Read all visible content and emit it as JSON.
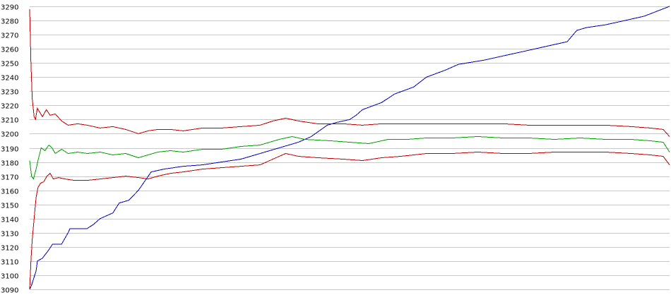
{
  "chart_data": {
    "type": "line",
    "title": "",
    "xlabel": "",
    "ylabel": "",
    "ylim": [
      3090,
      3290
    ],
    "xlim": [
      0,
      1
    ],
    "yticks": [
      "3090",
      "3100",
      "3110",
      "3120",
      "3130",
      "3140",
      "3150",
      "3160",
      "3170",
      "3180",
      "3190",
      "3200",
      "3210",
      "3220",
      "3230",
      "3240",
      "3250",
      "3260",
      "3270",
      "3280",
      "3290"
    ],
    "grid": true,
    "legend": "none",
    "colors": {
      "background": "#ffffff",
      "grid": "#c8c8c8",
      "axis_text": "#000000"
    },
    "series": [
      {
        "color": "#0000c0",
        "points": [
          [
            0,
            3090
          ],
          [
            0.003,
            3093
          ],
          [
            0.01,
            3103
          ],
          [
            0.012,
            3110
          ],
          [
            0.02,
            3112
          ],
          [
            0.03,
            3118
          ],
          [
            0.036,
            3122
          ],
          [
            0.05,
            3122
          ],
          [
            0.06,
            3130
          ],
          [
            0.063,
            3133
          ],
          [
            0.09,
            3133
          ],
          [
            0.1,
            3136
          ],
          [
            0.11,
            3140
          ],
          [
            0.13,
            3144
          ],
          [
            0.14,
            3151
          ],
          [
            0.155,
            3153
          ],
          [
            0.17,
            3160
          ],
          [
            0.19,
            3173
          ],
          [
            0.21,
            3175
          ],
          [
            0.24,
            3177
          ],
          [
            0.27,
            3178
          ],
          [
            0.3,
            3180
          ],
          [
            0.33,
            3182
          ],
          [
            0.36,
            3186
          ],
          [
            0.39,
            3190
          ],
          [
            0.42,
            3194
          ],
          [
            0.44,
            3198
          ],
          [
            0.465,
            3206
          ],
          [
            0.48,
            3208
          ],
          [
            0.5,
            3210
          ],
          [
            0.51,
            3213
          ],
          [
            0.52,
            3217
          ],
          [
            0.55,
            3222
          ],
          [
            0.57,
            3228
          ],
          [
            0.6,
            3233
          ],
          [
            0.62,
            3240
          ],
          [
            0.65,
            3245
          ],
          [
            0.67,
            3249
          ],
          [
            0.71,
            3252
          ],
          [
            0.74,
            3255
          ],
          [
            0.78,
            3259
          ],
          [
            0.81,
            3262
          ],
          [
            0.84,
            3265
          ],
          [
            0.855,
            3273
          ],
          [
            0.87,
            3275
          ],
          [
            0.9,
            3277
          ],
          [
            0.93,
            3280
          ],
          [
            0.96,
            3283
          ],
          [
            1,
            3290
          ]
        ]
      },
      {
        "color": "#00a000",
        "points": [
          [
            0,
            3181
          ],
          [
            0.003,
            3170
          ],
          [
            0.006,
            3168
          ],
          [
            0.01,
            3175
          ],
          [
            0.013,
            3181
          ],
          [
            0.018,
            3190
          ],
          [
            0.024,
            3188
          ],
          [
            0.03,
            3192
          ],
          [
            0.035,
            3190
          ],
          [
            0.04,
            3186
          ],
          [
            0.05,
            3189
          ],
          [
            0.06,
            3186
          ],
          [
            0.075,
            3187
          ],
          [
            0.09,
            3186
          ],
          [
            0.11,
            3187
          ],
          [
            0.13,
            3185
          ],
          [
            0.15,
            3186
          ],
          [
            0.17,
            3183
          ],
          [
            0.185,
            3185
          ],
          [
            0.2,
            3187
          ],
          [
            0.22,
            3188
          ],
          [
            0.24,
            3187
          ],
          [
            0.27,
            3189
          ],
          [
            0.3,
            3189
          ],
          [
            0.33,
            3191
          ],
          [
            0.36,
            3192
          ],
          [
            0.39,
            3196
          ],
          [
            0.41,
            3198
          ],
          [
            0.43,
            3196
          ],
          [
            0.47,
            3195
          ],
          [
            0.5,
            3194
          ],
          [
            0.53,
            3193
          ],
          [
            0.56,
            3196
          ],
          [
            0.59,
            3196
          ],
          [
            0.62,
            3197
          ],
          [
            0.66,
            3197
          ],
          [
            0.7,
            3198
          ],
          [
            0.74,
            3197
          ],
          [
            0.78,
            3197
          ],
          [
            0.82,
            3196
          ],
          [
            0.86,
            3197
          ],
          [
            0.9,
            3196
          ],
          [
            0.94,
            3196
          ],
          [
            0.97,
            3195
          ],
          [
            0.99,
            3194
          ],
          [
            1,
            3187
          ]
        ]
      },
      {
        "color": "#c00000",
        "points": [
          [
            0,
            3288
          ],
          [
            0.002,
            3250
          ],
          [
            0.004,
            3225
          ],
          [
            0.007,
            3212
          ],
          [
            0.009,
            3210
          ],
          [
            0.012,
            3218
          ],
          [
            0.016,
            3215
          ],
          [
            0.02,
            3212
          ],
          [
            0.026,
            3217
          ],
          [
            0.032,
            3213
          ],
          [
            0.04,
            3214
          ],
          [
            0.05,
            3209
          ],
          [
            0.06,
            3206
          ],
          [
            0.075,
            3207
          ],
          [
            0.09,
            3206
          ],
          [
            0.11,
            3204
          ],
          [
            0.13,
            3205
          ],
          [
            0.15,
            3203
          ],
          [
            0.17,
            3200
          ],
          [
            0.185,
            3202
          ],
          [
            0.2,
            3203
          ],
          [
            0.22,
            3203
          ],
          [
            0.24,
            3202
          ],
          [
            0.27,
            3204
          ],
          [
            0.3,
            3204
          ],
          [
            0.33,
            3205
          ],
          [
            0.36,
            3206
          ],
          [
            0.38,
            3209
          ],
          [
            0.4,
            3211
          ],
          [
            0.42,
            3209
          ],
          [
            0.45,
            3207
          ],
          [
            0.49,
            3207
          ],
          [
            0.52,
            3206
          ],
          [
            0.55,
            3207
          ],
          [
            0.58,
            3207
          ],
          [
            0.62,
            3207
          ],
          [
            0.66,
            3207
          ],
          [
            0.7,
            3207
          ],
          [
            0.74,
            3207
          ],
          [
            0.78,
            3206
          ],
          [
            0.82,
            3206
          ],
          [
            0.86,
            3206
          ],
          [
            0.9,
            3206
          ],
          [
            0.94,
            3205
          ],
          [
            0.97,
            3204
          ],
          [
            0.99,
            3203
          ],
          [
            1,
            3198
          ]
        ]
      },
      {
        "color": "#c00000",
        "points": [
          [
            0,
            3090
          ],
          [
            0.002,
            3110
          ],
          [
            0.004,
            3125
          ],
          [
            0.007,
            3140
          ],
          [
            0.01,
            3155
          ],
          [
            0.013,
            3162
          ],
          [
            0.017,
            3165
          ],
          [
            0.022,
            3166
          ],
          [
            0.027,
            3170
          ],
          [
            0.032,
            3172
          ],
          [
            0.037,
            3168
          ],
          [
            0.045,
            3169
          ],
          [
            0.055,
            3168
          ],
          [
            0.07,
            3167
          ],
          [
            0.09,
            3167
          ],
          [
            0.11,
            3168
          ],
          [
            0.13,
            3169
          ],
          [
            0.15,
            3170
          ],
          [
            0.17,
            3169
          ],
          [
            0.185,
            3168
          ],
          [
            0.2,
            3170
          ],
          [
            0.22,
            3172
          ],
          [
            0.24,
            3173
          ],
          [
            0.27,
            3175
          ],
          [
            0.3,
            3176
          ],
          [
            0.33,
            3177
          ],
          [
            0.36,
            3178
          ],
          [
            0.38,
            3182
          ],
          [
            0.4,
            3186
          ],
          [
            0.42,
            3184
          ],
          [
            0.45,
            3183
          ],
          [
            0.49,
            3182
          ],
          [
            0.52,
            3181
          ],
          [
            0.55,
            3183
          ],
          [
            0.58,
            3184
          ],
          [
            0.62,
            3186
          ],
          [
            0.66,
            3186
          ],
          [
            0.7,
            3187
          ],
          [
            0.74,
            3186
          ],
          [
            0.78,
            3186
          ],
          [
            0.82,
            3187
          ],
          [
            0.86,
            3187
          ],
          [
            0.9,
            3187
          ],
          [
            0.94,
            3186
          ],
          [
            0.97,
            3185
          ],
          [
            0.99,
            3184
          ],
          [
            1,
            3178
          ]
        ]
      }
    ]
  }
}
